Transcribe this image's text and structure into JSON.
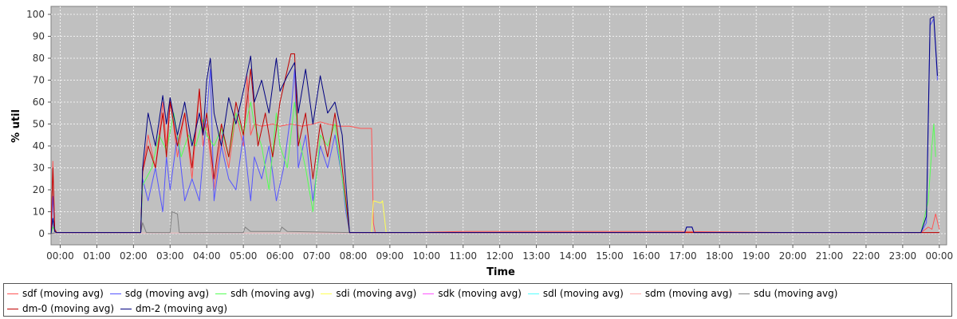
{
  "chart_data": {
    "type": "line",
    "title": "",
    "xlabel": "Time",
    "ylabel": "% util",
    "ylim": [
      0,
      100
    ],
    "xlim_hours": [
      -0.25,
      24.2
    ],
    "y_ticks": [
      0,
      10,
      20,
      30,
      40,
      50,
      60,
      70,
      80,
      90,
      100
    ],
    "x_ticks": [
      {
        "hour": 0,
        "label": "00:00"
      },
      {
        "hour": 1,
        "label": "01:00"
      },
      {
        "hour": 2,
        "label": "02:00"
      },
      {
        "hour": 3,
        "label": "03:00"
      },
      {
        "hour": 4,
        "label": "04:00"
      },
      {
        "hour": 5,
        "label": "05:00"
      },
      {
        "hour": 6,
        "label": "06:00"
      },
      {
        "hour": 7,
        "label": "07:00"
      },
      {
        "hour": 8,
        "label": "08:00"
      },
      {
        "hour": 9,
        "label": "09:00"
      },
      {
        "hour": 10,
        "label": "10:00"
      },
      {
        "hour": 11,
        "label": "11:00"
      },
      {
        "hour": 12,
        "label": "12:00"
      },
      {
        "hour": 13,
        "label": "13:00"
      },
      {
        "hour": 14,
        "label": "14:00"
      },
      {
        "hour": 15,
        "label": "15:00"
      },
      {
        "hour": 16,
        "label": "16:00"
      },
      {
        "hour": 17,
        "label": "17:00"
      },
      {
        "hour": 18,
        "label": "18:00"
      },
      {
        "hour": 19,
        "label": "19:00"
      },
      {
        "hour": 20,
        "label": "20:00"
      },
      {
        "hour": 21,
        "label": "21:00"
      },
      {
        "hour": 22,
        "label": "22:00"
      },
      {
        "hour": 23,
        "label": "23:00"
      },
      {
        "hour": 24,
        "label": "00:00"
      }
    ],
    "grid": true,
    "legend_position": "bottom",
    "plot_background": "#c0c0c0",
    "series": [
      {
        "name": "sdf (moving avg)",
        "color": "#ff5555",
        "points": [
          [
            -0.25,
            0
          ],
          [
            -0.2,
            33
          ],
          [
            -0.15,
            2
          ],
          [
            -0.1,
            0.5
          ],
          [
            2.2,
            0.5
          ],
          [
            2.25,
            28
          ],
          [
            2.4,
            45
          ],
          [
            2.6,
            30
          ],
          [
            2.8,
            60
          ],
          [
            2.9,
            40
          ],
          [
            3.0,
            62
          ],
          [
            3.2,
            35
          ],
          [
            3.4,
            55
          ],
          [
            3.6,
            25
          ],
          [
            3.8,
            65
          ],
          [
            3.9,
            40
          ],
          [
            4.0,
            50
          ],
          [
            4.2,
            20
          ],
          [
            4.4,
            45
          ],
          [
            4.6,
            30
          ],
          [
            4.8,
            55
          ],
          [
            5.0,
            40
          ],
          [
            5.1,
            72
          ],
          [
            5.2,
            45
          ],
          [
            5.3,
            50
          ],
          [
            5.5,
            49
          ],
          [
            5.8,
            50
          ],
          [
            6.0,
            49
          ],
          [
            6.3,
            50
          ],
          [
            6.6,
            49
          ],
          [
            6.9,
            50
          ],
          [
            7.1,
            51
          ],
          [
            7.3,
            50
          ],
          [
            7.6,
            49
          ],
          [
            7.9,
            49
          ],
          [
            8.2,
            48
          ],
          [
            8.5,
            48
          ],
          [
            8.55,
            5
          ],
          [
            8.6,
            0.5
          ],
          [
            9.0,
            0.3
          ],
          [
            11.0,
            1
          ],
          [
            13.0,
            1
          ],
          [
            15.0,
            1
          ],
          [
            17.0,
            1
          ],
          [
            20.0,
            0.5
          ],
          [
            23.5,
            0.5
          ],
          [
            23.7,
            3
          ],
          [
            23.8,
            2
          ],
          [
            23.9,
            9
          ],
          [
            24.0,
            2
          ]
        ]
      },
      {
        "name": "sdg (moving avg)",
        "color": "#5555ff",
        "points": [
          [
            -0.25,
            0
          ],
          [
            -0.2,
            17
          ],
          [
            -0.15,
            2
          ],
          [
            -0.1,
            0.5
          ],
          [
            2.2,
            0.5
          ],
          [
            2.25,
            25
          ],
          [
            2.4,
            15
          ],
          [
            2.6,
            30
          ],
          [
            2.8,
            10
          ],
          [
            2.9,
            35
          ],
          [
            3.0,
            20
          ],
          [
            3.2,
            45
          ],
          [
            3.4,
            15
          ],
          [
            3.6,
            25
          ],
          [
            3.8,
            15
          ],
          [
            3.9,
            35
          ],
          [
            4.0,
            55
          ],
          [
            4.1,
            75
          ],
          [
            4.2,
            15
          ],
          [
            4.4,
            40
          ],
          [
            4.6,
            25
          ],
          [
            4.8,
            20
          ],
          [
            5.0,
            45
          ],
          [
            5.2,
            15
          ],
          [
            5.3,
            35
          ],
          [
            5.5,
            25
          ],
          [
            5.7,
            40
          ],
          [
            5.9,
            15
          ],
          [
            6.1,
            30
          ],
          [
            6.3,
            55
          ],
          [
            6.4,
            75
          ],
          [
            6.5,
            30
          ],
          [
            6.7,
            45
          ],
          [
            6.9,
            15
          ],
          [
            7.1,
            40
          ],
          [
            7.3,
            30
          ],
          [
            7.5,
            45
          ],
          [
            7.7,
            25
          ],
          [
            7.8,
            10
          ],
          [
            7.9,
            0.5
          ],
          [
            10.0,
            0.5
          ],
          [
            13.0,
            0.5
          ],
          [
            16.0,
            0.5
          ],
          [
            17.05,
            0.5
          ],
          [
            17.1,
            3
          ],
          [
            17.25,
            3
          ],
          [
            17.3,
            0.5
          ],
          [
            20.0,
            0.5
          ],
          [
            23.5,
            0.5
          ],
          [
            23.65,
            5
          ],
          [
            23.75,
            95
          ],
          [
            23.85,
            98
          ],
          [
            23.95,
            70
          ]
        ]
      },
      {
        "name": "sdh (moving avg)",
        "color": "#55ff55",
        "points": [
          [
            -0.25,
            0
          ],
          [
            -0.2,
            3
          ],
          [
            -0.1,
            0.5
          ],
          [
            2.2,
            0.5
          ],
          [
            2.25,
            22
          ],
          [
            2.5,
            30
          ],
          [
            2.7,
            45
          ],
          [
            2.9,
            38
          ],
          [
            3.1,
            55
          ],
          [
            3.3,
            35
          ],
          [
            3.5,
            45
          ],
          [
            3.7,
            40
          ],
          [
            3.9,
            52
          ],
          [
            4.0,
            45
          ],
          [
            4.2,
            40
          ],
          [
            4.4,
            48
          ],
          [
            4.6,
            35
          ],
          [
            4.8,
            55
          ],
          [
            5.0,
            45
          ],
          [
            5.2,
            60
          ],
          [
            5.3,
            50
          ],
          [
            5.5,
            40
          ],
          [
            5.7,
            20
          ],
          [
            5.9,
            55
          ],
          [
            6.0,
            40
          ],
          [
            6.2,
            30
          ],
          [
            6.4,
            60
          ],
          [
            6.5,
            45
          ],
          [
            6.7,
            30
          ],
          [
            6.9,
            10
          ],
          [
            7.1,
            45
          ],
          [
            7.3,
            40
          ],
          [
            7.5,
            50
          ],
          [
            7.7,
            25
          ],
          [
            7.9,
            0.5
          ],
          [
            10.0,
            0.5
          ],
          [
            23.5,
            0.5
          ],
          [
            23.7,
            15
          ],
          [
            23.8,
            40
          ],
          [
            23.85,
            50
          ],
          [
            23.9,
            35
          ]
        ]
      },
      {
        "name": "sdi (moving avg)",
        "color": "#ffff55",
        "points": [
          [
            -0.25,
            0
          ],
          [
            -0.1,
            0.3
          ],
          [
            8.5,
            0.3
          ],
          [
            8.55,
            15
          ],
          [
            8.75,
            14
          ],
          [
            8.8,
            15
          ],
          [
            8.9,
            0.3
          ],
          [
            24.0,
            0.3
          ]
        ]
      },
      {
        "name": "sdk (moving avg)",
        "color": "#ff55ff",
        "points": [
          [
            -0.25,
            0
          ],
          [
            -0.1,
            0.2
          ],
          [
            24.0,
            0.2
          ]
        ]
      },
      {
        "name": "sdl (moving avg)",
        "color": "#55ffff",
        "points": [
          [
            -0.25,
            0
          ],
          [
            -0.1,
            0.2
          ],
          [
            24.0,
            0.2
          ]
        ]
      },
      {
        "name": "sdm (moving avg)",
        "color": "#ffafaf",
        "points": [
          [
            -0.25,
            0
          ],
          [
            -0.1,
            0.3
          ],
          [
            24.0,
            0.3
          ]
        ]
      },
      {
        "name": "sdu (moving avg)",
        "color": "#808080",
        "points": [
          [
            -0.25,
            0
          ],
          [
            -0.1,
            0.5
          ],
          [
            2.2,
            0.5
          ],
          [
            2.25,
            5
          ],
          [
            2.35,
            0.5
          ],
          [
            3.0,
            0.5
          ],
          [
            3.05,
            10
          ],
          [
            3.2,
            9
          ],
          [
            3.25,
            0.5
          ],
          [
            5.0,
            0.5
          ],
          [
            5.05,
            3
          ],
          [
            5.2,
            1
          ],
          [
            6.0,
            1
          ],
          [
            6.05,
            3
          ],
          [
            6.2,
            1
          ],
          [
            7.9,
            0.5
          ],
          [
            24.0,
            0.5
          ]
        ]
      },
      {
        "name": "dm-0 (moving avg)",
        "color": "#c00000",
        "points": [
          [
            -0.25,
            0
          ],
          [
            -0.2,
            30
          ],
          [
            -0.15,
            2
          ],
          [
            -0.1,
            0.5
          ],
          [
            2.2,
            0.5
          ],
          [
            2.25,
            28
          ],
          [
            2.4,
            40
          ],
          [
            2.6,
            30
          ],
          [
            2.8,
            55
          ],
          [
            2.9,
            35
          ],
          [
            3.0,
            60
          ],
          [
            3.2,
            40
          ],
          [
            3.4,
            55
          ],
          [
            3.6,
            30
          ],
          [
            3.8,
            66
          ],
          [
            3.9,
            45
          ],
          [
            4.0,
            55
          ],
          [
            4.2,
            25
          ],
          [
            4.4,
            50
          ],
          [
            4.6,
            35
          ],
          [
            4.8,
            60
          ],
          [
            5.0,
            45
          ],
          [
            5.2,
            75
          ],
          [
            5.4,
            40
          ],
          [
            5.6,
            55
          ],
          [
            5.8,
            35
          ],
          [
            6.0,
            60
          ],
          [
            6.3,
            82
          ],
          [
            6.4,
            82
          ],
          [
            6.5,
            40
          ],
          [
            6.7,
            55
          ],
          [
            6.9,
            25
          ],
          [
            7.1,
            50
          ],
          [
            7.3,
            35
          ],
          [
            7.5,
            55
          ],
          [
            7.7,
            30
          ],
          [
            7.9,
            0.5
          ],
          [
            24.0,
            0.5
          ]
        ]
      },
      {
        "name": "dm-2 (moving avg)",
        "color": "#000080",
        "points": [
          [
            -0.25,
            0
          ],
          [
            -0.2,
            7
          ],
          [
            -0.15,
            1
          ],
          [
            -0.1,
            0.5
          ],
          [
            2.2,
            0.5
          ],
          [
            2.25,
            30
          ],
          [
            2.4,
            55
          ],
          [
            2.6,
            40
          ],
          [
            2.8,
            63
          ],
          [
            2.9,
            50
          ],
          [
            3.0,
            62
          ],
          [
            3.2,
            45
          ],
          [
            3.4,
            60
          ],
          [
            3.6,
            40
          ],
          [
            3.8,
            55
          ],
          [
            3.9,
            45
          ],
          [
            4.0,
            70
          ],
          [
            4.1,
            80
          ],
          [
            4.2,
            55
          ],
          [
            4.4,
            40
          ],
          [
            4.6,
            62
          ],
          [
            4.8,
            50
          ],
          [
            5.0,
            65
          ],
          [
            5.2,
            81
          ],
          [
            5.3,
            60
          ],
          [
            5.5,
            70
          ],
          [
            5.7,
            55
          ],
          [
            5.9,
            80
          ],
          [
            6.0,
            65
          ],
          [
            6.2,
            72
          ],
          [
            6.4,
            78
          ],
          [
            6.5,
            55
          ],
          [
            6.7,
            75
          ],
          [
            6.9,
            50
          ],
          [
            7.1,
            72
          ],
          [
            7.3,
            55
          ],
          [
            7.5,
            60
          ],
          [
            7.7,
            45
          ],
          [
            7.9,
            0.5
          ],
          [
            17.05,
            0.5
          ],
          [
            17.1,
            3
          ],
          [
            17.25,
            3
          ],
          [
            17.3,
            0.5
          ],
          [
            23.5,
            0.5
          ],
          [
            23.65,
            8
          ],
          [
            23.75,
            98
          ],
          [
            23.85,
            99
          ],
          [
            23.95,
            72
          ]
        ]
      }
    ]
  }
}
